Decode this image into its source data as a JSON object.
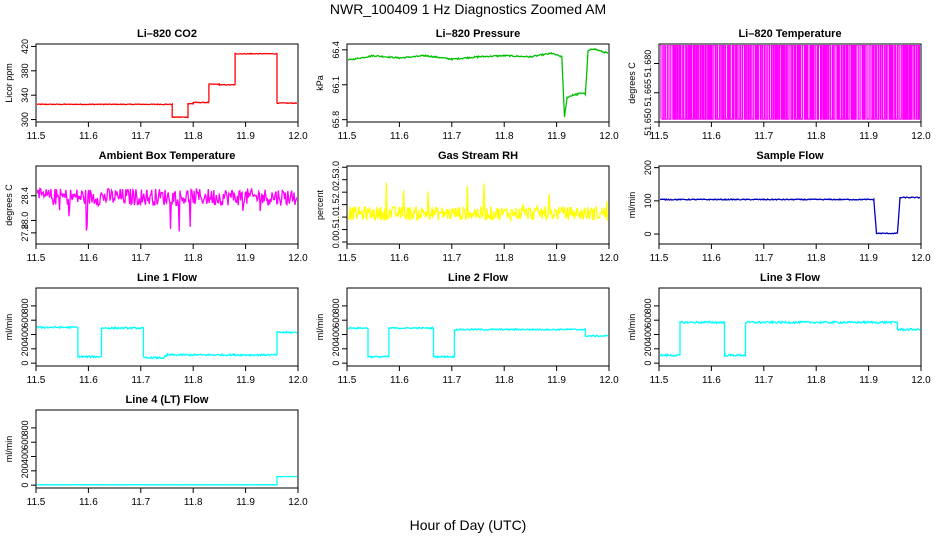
{
  "figure": {
    "title": "NWR_100409  1 Hz Diagnostics Zoomed AM",
    "xlabel": "Hour of Day (UTC)"
  },
  "chart_data": [
    {
      "id": "co2",
      "type": "line",
      "title": "Li–820 CO2",
      "ylabel": "Licor ppm",
      "color": "#ff0000",
      "xlim": [
        11.5,
        12.0
      ],
      "ylim": [
        296,
        424
      ],
      "xticks": [
        "11.5",
        "11.6",
        "11.7",
        "11.8",
        "11.9",
        "12.0"
      ],
      "yticks": [
        "300",
        "340",
        "380",
        "420"
      ],
      "ytick_values": [
        300,
        340,
        380,
        420
      ],
      "noise": 0.6,
      "x": [
        11.5,
        11.76,
        11.76,
        11.79,
        11.79,
        11.8,
        11.8,
        11.83,
        11.83,
        11.85,
        11.85,
        11.88,
        11.88,
        11.91,
        11.91,
        11.96,
        11.96,
        12.0
      ],
      "y": [
        325,
        325,
        304,
        304,
        326,
        326,
        328,
        328,
        358,
        358,
        357,
        357,
        408,
        408,
        408,
        408,
        327,
        327
      ]
    },
    {
      "id": "pressure",
      "type": "line",
      "title": "Li–820 Pressure",
      "ylabel": "kPa",
      "color": "#00c000",
      "xlim": [
        11.5,
        12.0
      ],
      "ylim": [
        65.78,
        66.45
      ],
      "xticks": [
        "11.5",
        "11.6",
        "11.7",
        "11.8",
        "11.9",
        "12.0"
      ],
      "yticks": [
        "65.8",
        "66.1",
        "66.4"
      ],
      "ytick_values": [
        65.8,
        66.1,
        66.4
      ],
      "noise": 0.006,
      "x": [
        11.5,
        11.55,
        11.6,
        11.65,
        11.7,
        11.75,
        11.8,
        11.85,
        11.89,
        11.91,
        11.915,
        11.92,
        11.93,
        11.94,
        11.95,
        11.955,
        11.96,
        11.97,
        11.99,
        12.0
      ],
      "y": [
        66.31,
        66.35,
        66.33,
        66.35,
        66.32,
        66.34,
        66.35,
        66.34,
        66.37,
        66.34,
        65.82,
        65.99,
        66.01,
        66.02,
        66.03,
        66.02,
        66.39,
        66.41,
        66.38,
        66.37
      ]
    },
    {
      "id": "temperature",
      "type": "line",
      "title": "Li–820 Temperature",
      "ylabel": "degrees C",
      "color": "#ff00ff",
      "xlim": [
        11.5,
        12.0
      ],
      "ylim": [
        51.65,
        51.69
      ],
      "xticks": [
        "11.5",
        "11.6",
        "11.7",
        "11.8",
        "11.9",
        "12.0"
      ],
      "yticks": [
        "51.650",
        "51.665",
        "51.680"
      ],
      "ytick_values": [
        51.65,
        51.665,
        51.68
      ],
      "noise": 0,
      "mode": "toggle",
      "low": 51.6515,
      "high": 51.6895,
      "x": [
        11.5,
        12.0
      ],
      "y": [
        51.6515,
        51.6895
      ]
    },
    {
      "id": "ambient",
      "type": "line",
      "title": "Ambient Box Temperature",
      "ylabel": "degrees C",
      "color": "#ff00ff",
      "xlim": [
        11.5,
        12.0
      ],
      "ylim": [
        27.62,
        28.88
      ],
      "xticks": [
        "11.5",
        "11.6",
        "11.7",
        "11.8",
        "11.9",
        "12.0"
      ],
      "yticks": [
        "27.8",
        "28.0",
        "28.4"
      ],
      "ytick_values": [
        27.8,
        28.0,
        28.4
      ],
      "noise": 0.14,
      "spikes": -0.5,
      "x": [
        11.5,
        12.0
      ],
      "y": [
        28.38,
        28.38
      ]
    },
    {
      "id": "rh",
      "type": "line",
      "title": "Gas Stream RH",
      "ylabel": "percent",
      "color": "#ffff00",
      "xlim": [
        11.5,
        12.0
      ],
      "ylim": [
        -0.08,
        3.05
      ],
      "xticks": [
        "11.5",
        "11.6",
        "11.7",
        "11.8",
        "11.9",
        "12.0"
      ],
      "yticks": [
        "0.0",
        "0.5",
        "1.0",
        "1.5",
        "2.0",
        "2.5",
        "3.0"
      ],
      "ytick_values": [
        0,
        0.5,
        1,
        1.5,
        2,
        2.5,
        3
      ],
      "noise": 0.28,
      "spikes": 1.5,
      "x": [
        11.5,
        12.0
      ],
      "y": [
        1.15,
        1.15
      ]
    },
    {
      "id": "sample",
      "type": "line",
      "title": "Sample Flow",
      "ylabel": "ml/min",
      "color": "#0000c0",
      "xlim": [
        11.5,
        12.0
      ],
      "ylim": [
        -30,
        205
      ],
      "xticks": [
        "11.5",
        "11.6",
        "11.7",
        "11.8",
        "11.9",
        "12.0"
      ],
      "yticks": [
        "0",
        "100",
        "200"
      ],
      "ytick_values": [
        0,
        100,
        200
      ],
      "noise": 1.5,
      "x": [
        11.5,
        11.91,
        11.915,
        11.955,
        11.96,
        12.0
      ],
      "y": [
        104,
        104,
        2,
        2,
        110,
        110
      ]
    },
    {
      "id": "line1",
      "type": "line",
      "title": "Line 1 Flow",
      "ylabel": "ml/min",
      "color": "#00ffff",
      "xlim": [
        11.5,
        12.0
      ],
      "ylim": [
        -40,
        1050
      ],
      "xticks": [
        "11.5",
        "11.6",
        "11.7",
        "11.8",
        "11.9",
        "12.0"
      ],
      "yticks": [
        "0",
        "200",
        "400",
        "600",
        "800"
      ],
      "ytick_values": [
        0,
        200,
        400,
        600,
        800
      ],
      "noise": 12,
      "x": [
        11.5,
        11.58,
        11.58,
        11.625,
        11.625,
        11.705,
        11.705,
        11.745,
        11.75,
        11.96,
        11.96,
        12.0
      ],
      "y": [
        500,
        500,
        90,
        90,
        490,
        490,
        75,
        75,
        115,
        115,
        430,
        430
      ]
    },
    {
      "id": "line2",
      "type": "line",
      "title": "Line 2 Flow",
      "ylabel": "ml/min",
      "color": "#00ffff",
      "xlim": [
        11.5,
        12.0
      ],
      "ylim": [
        -40,
        1050
      ],
      "xticks": [
        "11.5",
        "11.6",
        "11.7",
        "11.8",
        "11.9",
        "12.0"
      ],
      "yticks": [
        "0",
        "200",
        "400",
        "600",
        "800"
      ],
      "ytick_values": [
        0,
        200,
        400,
        600,
        800
      ],
      "noise": 10,
      "x": [
        11.5,
        11.54,
        11.54,
        11.58,
        11.58,
        11.665,
        11.665,
        11.705,
        11.705,
        11.955,
        11.955,
        12.0
      ],
      "y": [
        490,
        490,
        90,
        90,
        490,
        490,
        90,
        90,
        470,
        470,
        380,
        380
      ]
    },
    {
      "id": "line3",
      "type": "line",
      "title": "Line 3 Flow",
      "ylabel": "ml/min",
      "color": "#00ffff",
      "xlim": [
        11.5,
        12.0
      ],
      "ylim": [
        -40,
        1050
      ],
      "xticks": [
        "11.5",
        "11.6",
        "11.7",
        "11.8",
        "11.9",
        "12.0"
      ],
      "yticks": [
        "0",
        "200",
        "400",
        "600",
        "800"
      ],
      "ytick_values": [
        0,
        200,
        400,
        600,
        800
      ],
      "noise": 14,
      "x": [
        11.5,
        11.54,
        11.54,
        11.625,
        11.625,
        11.665,
        11.665,
        11.955,
        11.955,
        12.0
      ],
      "y": [
        110,
        110,
        570,
        570,
        110,
        110,
        570,
        570,
        470,
        470
      ]
    },
    {
      "id": "line4",
      "type": "line",
      "title": "Line 4 (LT) Flow",
      "ylabel": "ml/min",
      "color": "#00ffff",
      "xlim": [
        11.5,
        12.0
      ],
      "ylim": [
        -40,
        1050
      ],
      "xticks": [
        "11.5",
        "11.6",
        "11.7",
        "11.8",
        "11.9",
        "12.0"
      ],
      "yticks": [
        "0",
        "200",
        "400",
        "600",
        "800"
      ],
      "ytick_values": [
        0,
        200,
        400,
        600,
        800
      ],
      "noise": 1,
      "x": [
        11.5,
        11.96,
        11.96,
        12.0
      ],
      "y": [
        5,
        5,
        120,
        120
      ]
    }
  ]
}
